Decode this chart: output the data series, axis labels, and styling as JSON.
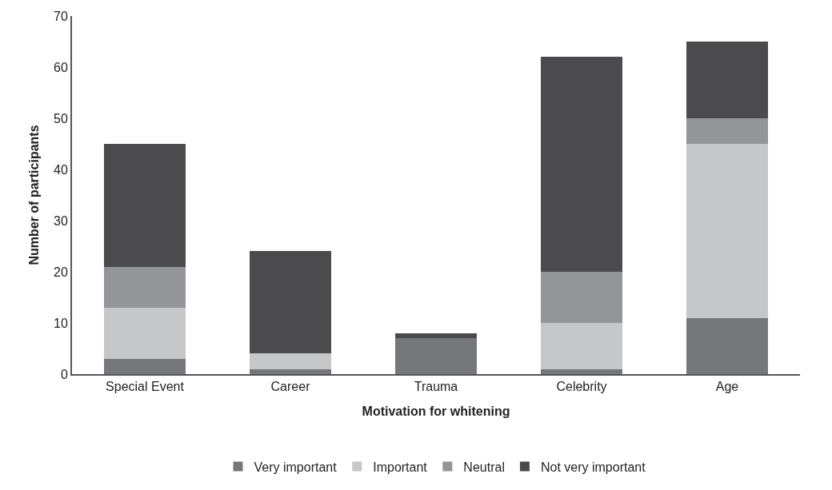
{
  "chart_data": {
    "type": "bar",
    "stacked": true,
    "xlabel": "Motivation for whitening",
    "ylabel": "Number of participants",
    "categories": [
      "Special Event",
      "Career",
      "Trauma",
      "Celebrity",
      "Age"
    ],
    "series": [
      {
        "name": "Very important",
        "color": "#76777b",
        "values": [
          3,
          1,
          7,
          1,
          11
        ]
      },
      {
        "name": "Important",
        "color": "#c6c7c9",
        "values": [
          10,
          3,
          0,
          9,
          34
        ]
      },
      {
        "name": "Neutral",
        "color": "#949598",
        "values": [
          8,
          0,
          0,
          10,
          5
        ]
      },
      {
        "name": "Not very important",
        "color": "#4b4b4d",
        "values": [
          24,
          20,
          1,
          42,
          15
        ]
      }
    ],
    "ylim": [
      0,
      70
    ],
    "yticks": [
      0,
      10,
      20,
      30,
      40,
      50,
      60,
      70
    ],
    "grid": false,
    "legend": "bottom"
  }
}
